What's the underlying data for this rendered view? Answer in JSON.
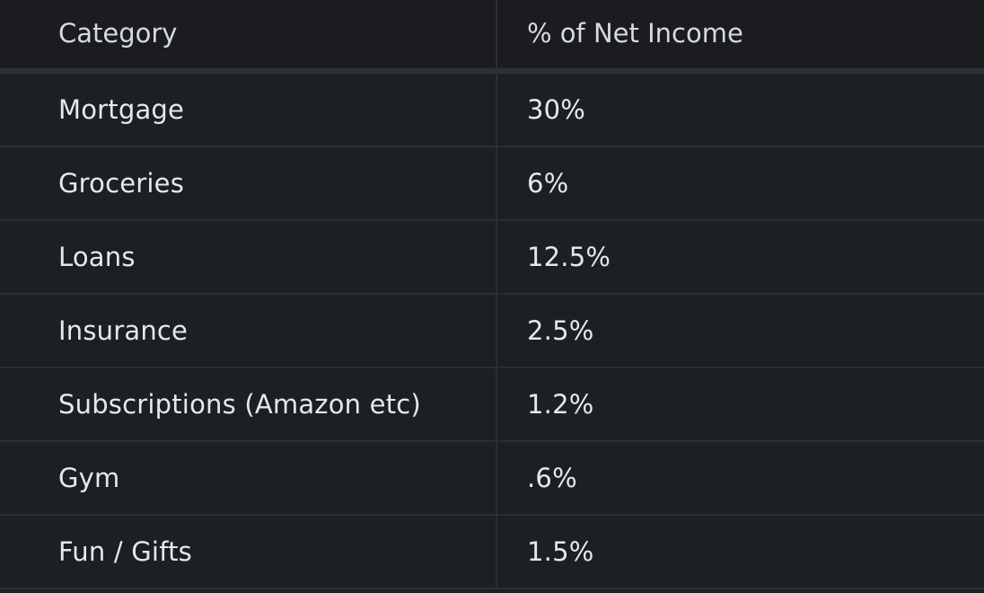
{
  "table": {
    "headers": [
      "Category",
      "% of Net Income"
    ],
    "rows": [
      [
        "Mortgage",
        "30%"
      ],
      [
        "Groceries",
        "6%"
      ],
      [
        "Loans",
        "12.5%"
      ],
      [
        "Insurance",
        "2.5%"
      ],
      [
        "Subscriptions (Amazon etc)",
        "1.2%"
      ],
      [
        "Gym",
        ".6%"
      ],
      [
        "Fun / Gifts",
        "1.5%"
      ]
    ]
  }
}
